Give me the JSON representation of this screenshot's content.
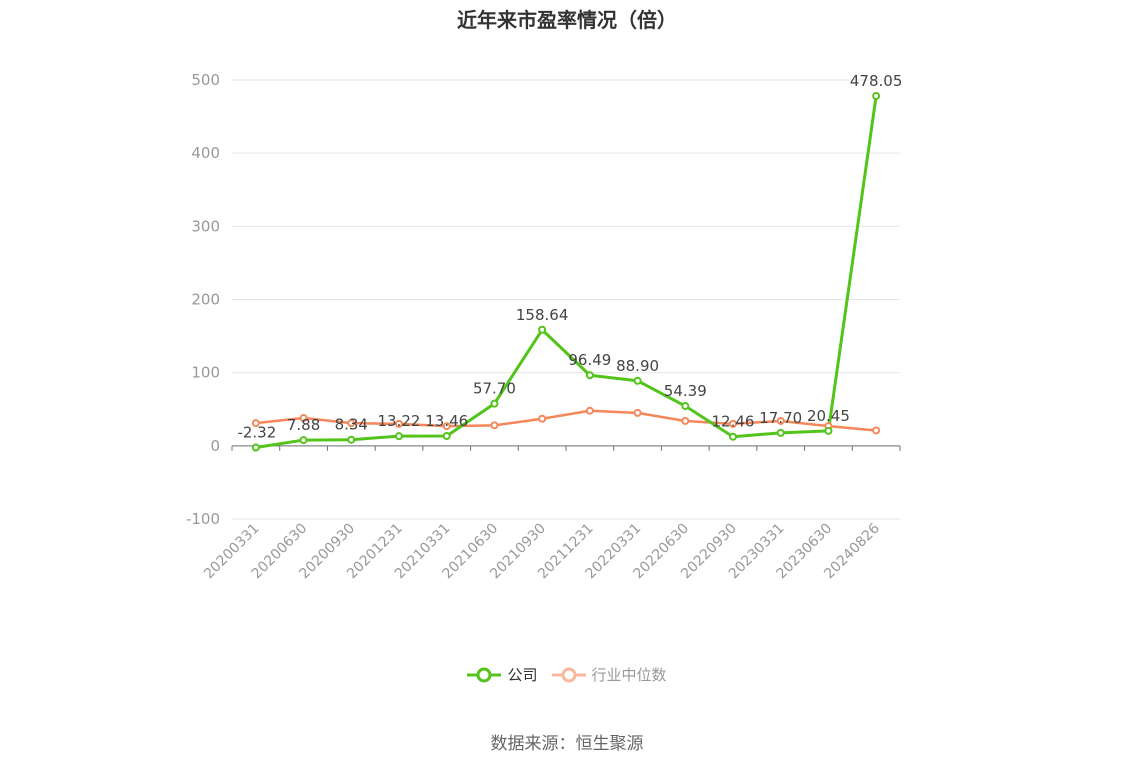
{
  "chart_data": {
    "type": "line",
    "title": "近年来市盈率情况（倍）",
    "categories": [
      "20200331",
      "20200630",
      "20200930",
      "20201231",
      "20210331",
      "20210630",
      "20210930",
      "20211231",
      "20220331",
      "20220630",
      "20220930",
      "20230331",
      "20230630",
      "20240826"
    ],
    "ylim": [
      -100,
      500
    ],
    "yticks": [
      -100,
      0,
      100,
      200,
      300,
      400,
      500
    ],
    "grid": true,
    "legend_position": "bottom",
    "series": [
      {
        "name": "公司",
        "color": "#52c41a",
        "values": [
          -2.32,
          7.88,
          8.34,
          13.22,
          13.46,
          57.7,
          158.64,
          96.49,
          88.9,
          54.39,
          12.46,
          17.7,
          20.45,
          478.05
        ],
        "labels": [
          "-2.32",
          "7.88",
          "8.34",
          "13.22",
          "13.46",
          "57.70",
          "158.64",
          "96.49",
          "88.90",
          "54.39",
          "12.46",
          "17.70",
          "20.45",
          "478.05"
        ]
      },
      {
        "name": "行业中位数",
        "color": "#f5875a",
        "values": [
          31,
          38,
          31,
          30,
          27,
          28,
          37,
          48,
          45,
          34,
          30,
          34,
          27,
          21
        ]
      }
    ]
  },
  "source": "数据来源：恒生聚源"
}
